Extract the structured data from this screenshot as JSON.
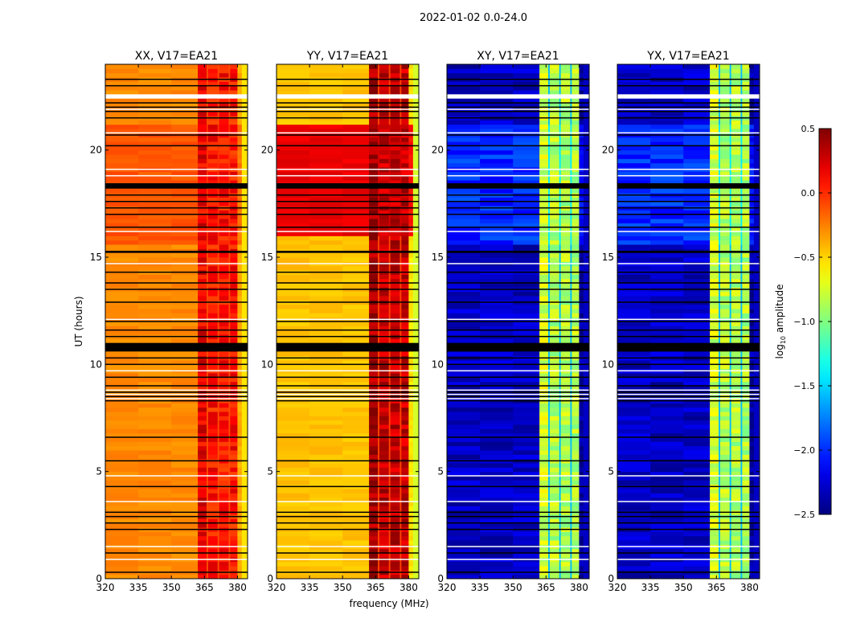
{
  "chart_data": {
    "type": "heatmap",
    "suptitle": "2022-01-02 0.0-24.0",
    "xlabel": "frequency (MHz)",
    "ylabel": "UT (hours)",
    "xlim": [
      320,
      384.6
    ],
    "ylim": [
      0,
      24
    ],
    "xticks": [
      320,
      335,
      350,
      365,
      380
    ],
    "yticks": [
      0,
      5,
      10,
      15,
      20
    ],
    "colorbar": {
      "label_prefix": "log",
      "label_sub": "10",
      "label_suffix": " amplitude",
      "range": [
        -2.5,
        0.5
      ],
      "ticks": [
        "0.5",
        "0.0",
        "−0.5",
        "−1.0",
        "−1.5",
        "−2.0",
        "−2.5"
      ],
      "tick_values": [
        0.5,
        0.0,
        -0.5,
        -1.0,
        -1.5,
        -2.0,
        -2.5
      ],
      "colormap": "jet"
    },
    "panels": [
      {
        "title": "XX, V17=EA21",
        "base_level": -0.28,
        "active_level": -0.12,
        "active_hours": [
          15.5,
          21.0
        ],
        "band_level": 0.08,
        "edge_level": -0.55
      },
      {
        "title": "YY, V17=EA21",
        "base_level": -0.45,
        "active_level": 0.18,
        "active_hours": [
          15.8,
          21.0
        ],
        "band_level": 0.3,
        "edge_level": -0.75
      },
      {
        "title": "XY, V17=EA21",
        "base_level": -2.3,
        "active_level": -2.0,
        "active_hours": [
          15.5,
          21.0
        ],
        "band_level": -0.85,
        "edge_level": -2.3
      },
      {
        "title": "YX, V17=EA21",
        "base_level": -2.3,
        "active_level": -2.0,
        "active_hours": [
          15.5,
          21.0
        ],
        "band_level": -0.85,
        "edge_level": -2.3
      }
    ],
    "band_mhz": [
      [
        362,
        366
      ],
      [
        366.5,
        371
      ],
      [
        371.5,
        376
      ],
      [
        376.5,
        380
      ]
    ],
    "flagged_thick_hours": [
      [
        10.6,
        11.0
      ],
      [
        15.2,
        15.3
      ],
      [
        18.2,
        18.45
      ]
    ],
    "flagged_line_hours": [
      0.3,
      1.2,
      2.3,
      2.6,
      2.9,
      3.1,
      4.3,
      5.5,
      6.6,
      8.3,
      8.5,
      8.7,
      9.0,
      9.4,
      10.0,
      10.3,
      11.3,
      11.6,
      12.0,
      12.9,
      13.5,
      13.8,
      14.3,
      16.4,
      17.0,
      17.3,
      17.6,
      17.9,
      20.2,
      20.7,
      21.5,
      21.8,
      22.0,
      22.2,
      23.0,
      23.3
    ],
    "gap_line_hours": [
      0.9,
      1.5,
      3.6,
      4.8,
      8.4,
      8.6,
      8.8,
      9.7,
      12.1,
      14.7,
      16.2,
      18.8,
      19.1,
      20.8,
      21.9
    ],
    "gap_thick_hours": [
      [
        22.4,
        22.6
      ]
    ]
  }
}
